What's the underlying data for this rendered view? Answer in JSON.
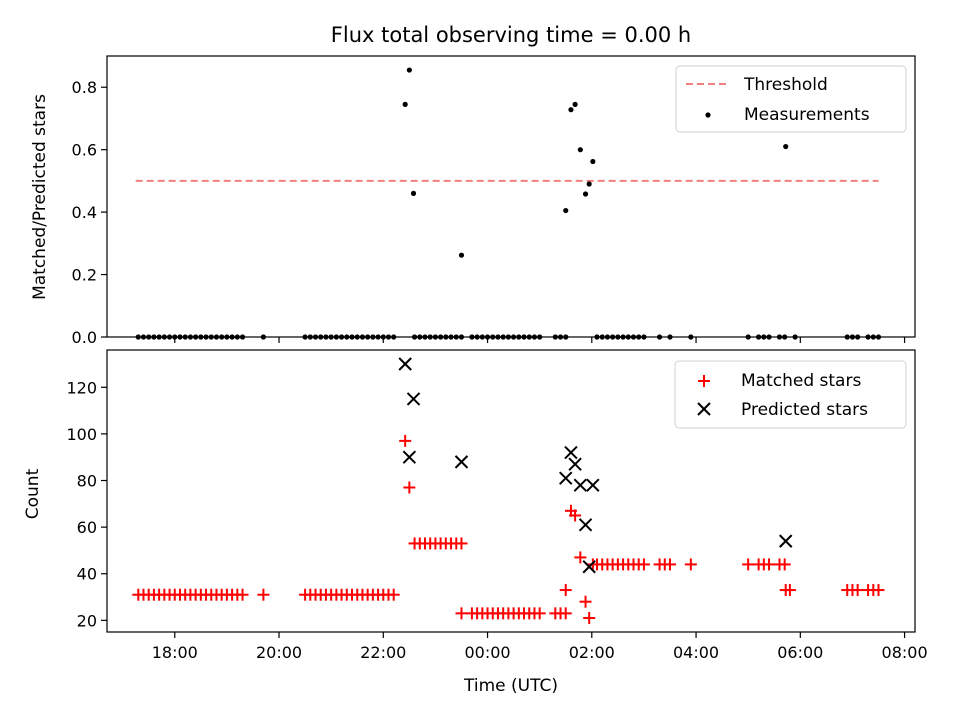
{
  "chart_data": [
    {
      "type": "scatter",
      "title": "Flux total observing time = 0.00 h",
      "xlabel": "",
      "ylabel": "Matched/Predicted stars",
      "ylim": [
        0,
        0.9
      ],
      "yticks": [
        "0.0",
        "0.2",
        "0.4",
        "0.6",
        "0.8"
      ],
      "ytick_values": [
        0,
        0.2,
        0.4,
        0.6,
        0.8
      ],
      "xlim_hours": [
        16.7,
        32.2
      ],
      "xtick_hours": [
        18,
        20,
        22,
        24,
        26,
        28,
        30,
        32
      ],
      "legend_position": "top-right",
      "threshold": {
        "name": "Threshold",
        "value": 0.5,
        "x_start": 17.25,
        "x_end": 31.5,
        "color": "#f08080"
      },
      "series": [
        {
          "name": "Measurements",
          "color": "#000000",
          "points": [
            [
              17.3,
              0
            ],
            [
              17.4,
              0
            ],
            [
              17.5,
              0
            ],
            [
              17.6,
              0
            ],
            [
              17.7,
              0
            ],
            [
              17.8,
              0
            ],
            [
              17.9,
              0
            ],
            [
              18.0,
              0
            ],
            [
              18.1,
              0
            ],
            [
              18.2,
              0
            ],
            [
              18.3,
              0
            ],
            [
              18.4,
              0
            ],
            [
              18.5,
              0
            ],
            [
              18.6,
              0
            ],
            [
              18.7,
              0
            ],
            [
              18.8,
              0
            ],
            [
              18.9,
              0
            ],
            [
              19.0,
              0
            ],
            [
              19.1,
              0
            ],
            [
              19.2,
              0
            ],
            [
              19.3,
              0
            ],
            [
              19.7,
              0
            ],
            [
              20.5,
              0
            ],
            [
              20.6,
              0
            ],
            [
              20.7,
              0
            ],
            [
              20.8,
              0
            ],
            [
              20.9,
              0
            ],
            [
              21.0,
              0
            ],
            [
              21.1,
              0
            ],
            [
              21.2,
              0
            ],
            [
              21.3,
              0
            ],
            [
              21.4,
              0
            ],
            [
              21.5,
              0
            ],
            [
              21.6,
              0
            ],
            [
              21.7,
              0
            ],
            [
              21.8,
              0
            ],
            [
              21.9,
              0
            ],
            [
              22.0,
              0
            ],
            [
              22.1,
              0
            ],
            [
              22.2,
              0
            ],
            [
              22.42,
              0.745
            ],
            [
              22.5,
              0.855
            ],
            [
              22.58,
              0.46
            ],
            [
              22.6,
              0
            ],
            [
              22.7,
              0
            ],
            [
              22.8,
              0
            ],
            [
              22.9,
              0
            ],
            [
              23.0,
              0
            ],
            [
              23.1,
              0
            ],
            [
              23.2,
              0
            ],
            [
              23.3,
              0
            ],
            [
              23.4,
              0
            ],
            [
              23.5,
              0
            ],
            [
              23.5,
              0.262
            ],
            [
              23.7,
              0
            ],
            [
              23.8,
              0
            ],
            [
              23.9,
              0
            ],
            [
              24.0,
              0
            ],
            [
              24.1,
              0
            ],
            [
              24.2,
              0
            ],
            [
              24.3,
              0
            ],
            [
              24.4,
              0
            ],
            [
              24.5,
              0
            ],
            [
              24.6,
              0
            ],
            [
              24.7,
              0
            ],
            [
              24.8,
              0
            ],
            [
              24.9,
              0
            ],
            [
              25.0,
              0
            ],
            [
              25.3,
              0
            ],
            [
              25.4,
              0
            ],
            [
              25.5,
              0
            ],
            [
              25.5,
              0.405
            ],
            [
              25.6,
              0.728
            ],
            [
              25.68,
              0.745
            ],
            [
              25.78,
              0.6
            ],
            [
              25.88,
              0.458
            ],
            [
              25.95,
              0.49
            ],
            [
              26.02,
              0.562
            ],
            [
              26.1,
              0
            ],
            [
              26.2,
              0
            ],
            [
              26.3,
              0
            ],
            [
              26.4,
              0
            ],
            [
              26.5,
              0
            ],
            [
              26.6,
              0
            ],
            [
              26.7,
              0
            ],
            [
              26.8,
              0
            ],
            [
              26.9,
              0
            ],
            [
              27.0,
              0
            ],
            [
              27.3,
              0
            ],
            [
              27.5,
              0
            ],
            [
              27.9,
              0
            ],
            [
              29.0,
              0
            ],
            [
              29.2,
              0
            ],
            [
              29.3,
              0
            ],
            [
              29.4,
              0
            ],
            [
              29.6,
              0
            ],
            [
              29.7,
              0
            ],
            [
              29.72,
              0.61
            ],
            [
              29.9,
              0
            ],
            [
              30.9,
              0
            ],
            [
              31.0,
              0
            ],
            [
              31.1,
              0
            ],
            [
              31.3,
              0
            ],
            [
              31.4,
              0
            ],
            [
              31.5,
              0
            ]
          ]
        }
      ]
    },
    {
      "type": "scatter",
      "title": "",
      "xlabel": "Time (UTC)",
      "ylabel": "Count",
      "ylim": [
        15,
        136
      ],
      "yticks": [
        "20",
        "40",
        "60",
        "80",
        "100",
        "120"
      ],
      "ytick_values": [
        20,
        40,
        60,
        80,
        100,
        120
      ],
      "xlim_hours": [
        16.7,
        32.2
      ],
      "xtick_hours": [
        18,
        20,
        22,
        24,
        26,
        28,
        30,
        32
      ],
      "xtick_labels": [
        "18:00",
        "20:00",
        "22:00",
        "00:00",
        "02:00",
        "04:00",
        "06:00",
        "08:00"
      ],
      "legend_position": "top-right",
      "series": [
        {
          "name": "Matched stars",
          "marker": "plus",
          "color": "#ff0000",
          "points": [
            [
              17.3,
              31
            ],
            [
              17.4,
              31
            ],
            [
              17.5,
              31
            ],
            [
              17.6,
              31
            ],
            [
              17.7,
              31
            ],
            [
              17.8,
              31
            ],
            [
              17.9,
              31
            ],
            [
              18.0,
              31
            ],
            [
              18.1,
              31
            ],
            [
              18.2,
              31
            ],
            [
              18.3,
              31
            ],
            [
              18.4,
              31
            ],
            [
              18.5,
              31
            ],
            [
              18.6,
              31
            ],
            [
              18.7,
              31
            ],
            [
              18.8,
              31
            ],
            [
              18.9,
              31
            ],
            [
              19.0,
              31
            ],
            [
              19.1,
              31
            ],
            [
              19.2,
              31
            ],
            [
              19.3,
              31
            ],
            [
              19.7,
              31
            ],
            [
              20.5,
              31
            ],
            [
              20.6,
              31
            ],
            [
              20.7,
              31
            ],
            [
              20.8,
              31
            ],
            [
              20.9,
              31
            ],
            [
              21.0,
              31
            ],
            [
              21.1,
              31
            ],
            [
              21.2,
              31
            ],
            [
              21.3,
              31
            ],
            [
              21.4,
              31
            ],
            [
              21.5,
              31
            ],
            [
              21.6,
              31
            ],
            [
              21.7,
              31
            ],
            [
              21.8,
              31
            ],
            [
              21.9,
              31
            ],
            [
              22.0,
              31
            ],
            [
              22.1,
              31
            ],
            [
              22.2,
              31
            ],
            [
              22.42,
              97
            ],
            [
              22.5,
              77
            ],
            [
              22.6,
              53
            ],
            [
              22.7,
              53
            ],
            [
              22.8,
              53
            ],
            [
              22.9,
              53
            ],
            [
              23.0,
              53
            ],
            [
              23.1,
              53
            ],
            [
              23.2,
              53
            ],
            [
              23.3,
              53
            ],
            [
              23.4,
              53
            ],
            [
              23.5,
              53
            ],
            [
              23.5,
              23
            ],
            [
              23.7,
              23
            ],
            [
              23.8,
              23
            ],
            [
              23.9,
              23
            ],
            [
              24.0,
              23
            ],
            [
              24.1,
              23
            ],
            [
              24.2,
              23
            ],
            [
              24.3,
              23
            ],
            [
              24.4,
              23
            ],
            [
              24.5,
              23
            ],
            [
              24.6,
              23
            ],
            [
              24.7,
              23
            ],
            [
              24.8,
              23
            ],
            [
              24.9,
              23
            ],
            [
              25.0,
              23
            ],
            [
              25.3,
              23
            ],
            [
              25.4,
              23
            ],
            [
              25.5,
              23
            ],
            [
              25.5,
              33
            ],
            [
              25.6,
              67
            ],
            [
              25.68,
              65
            ],
            [
              25.78,
              47
            ],
            [
              25.88,
              28
            ],
            [
              25.95,
              21
            ],
            [
              26.02,
              44
            ],
            [
              26.1,
              44
            ],
            [
              26.2,
              44
            ],
            [
              26.3,
              44
            ],
            [
              26.4,
              44
            ],
            [
              26.5,
              44
            ],
            [
              26.6,
              44
            ],
            [
              26.7,
              44
            ],
            [
              26.8,
              44
            ],
            [
              26.9,
              44
            ],
            [
              27.0,
              44
            ],
            [
              27.3,
              44
            ],
            [
              27.4,
              44
            ],
            [
              27.5,
              44
            ],
            [
              27.9,
              44
            ],
            [
              29.0,
              44
            ],
            [
              29.2,
              44
            ],
            [
              29.3,
              44
            ],
            [
              29.4,
              44
            ],
            [
              29.6,
              44
            ],
            [
              29.7,
              44
            ],
            [
              29.72,
              33
            ],
            [
              29.8,
              33
            ],
            [
              30.9,
              33
            ],
            [
              31.0,
              33
            ],
            [
              31.1,
              33
            ],
            [
              31.3,
              33
            ],
            [
              31.4,
              33
            ],
            [
              31.5,
              33
            ]
          ]
        },
        {
          "name": "Predicted stars",
          "marker": "x",
          "color": "#000000",
          "points": [
            [
              22.42,
              130
            ],
            [
              22.5,
              90
            ],
            [
              22.58,
              115
            ],
            [
              23.5,
              88
            ],
            [
              25.5,
              81
            ],
            [
              25.6,
              92
            ],
            [
              25.68,
              87
            ],
            [
              25.78,
              78
            ],
            [
              25.88,
              61
            ],
            [
              25.95,
              43
            ],
            [
              26.02,
              78
            ],
            [
              29.72,
              54
            ]
          ]
        }
      ]
    }
  ]
}
